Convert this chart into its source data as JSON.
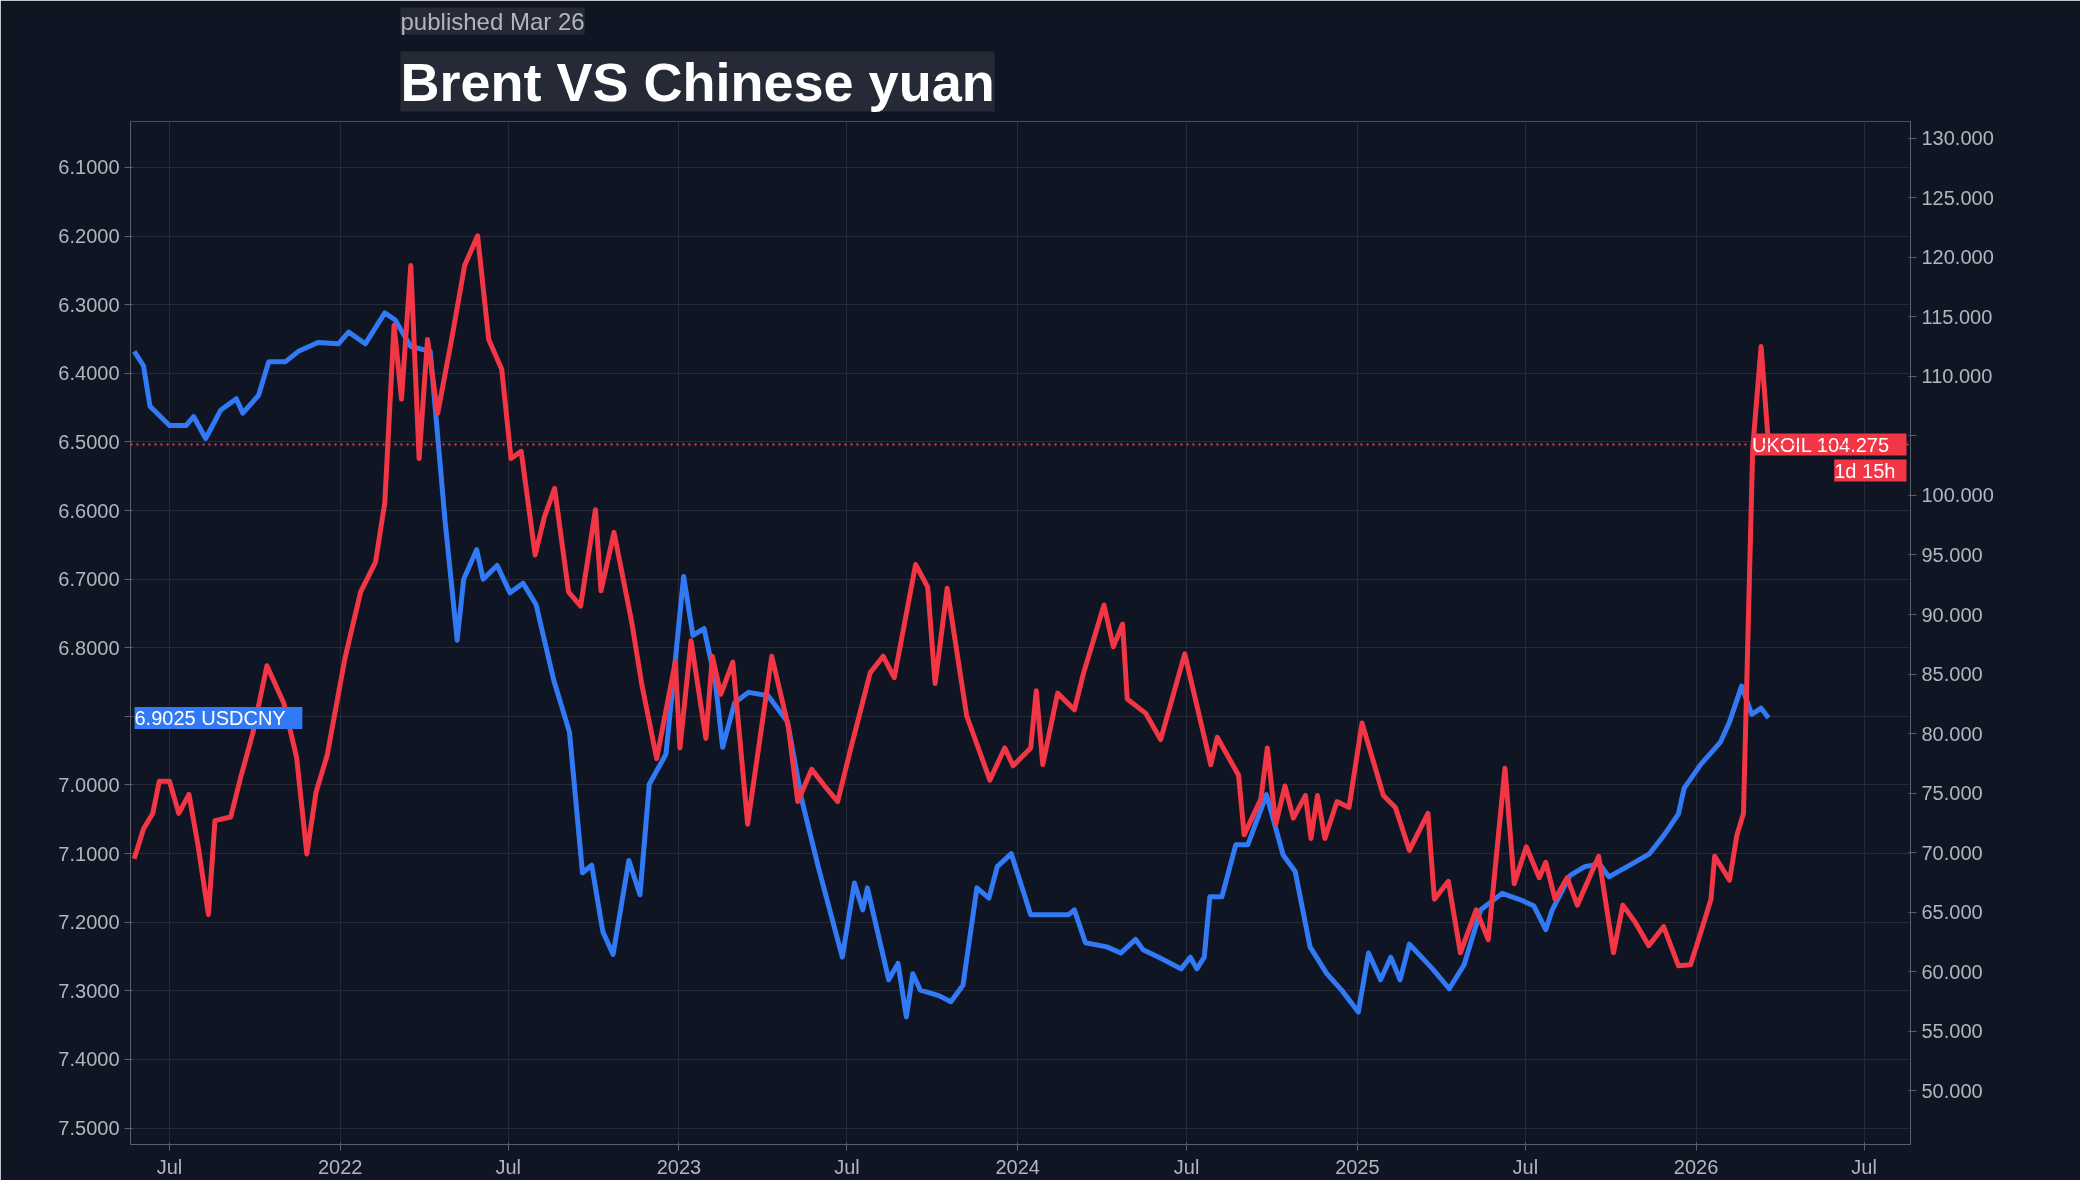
{
  "chart_data": {
    "type": "line",
    "title": "Brent VS Chinese yuan",
    "subtitle": "published Mar 26",
    "xlim": [
      "2021-05-20",
      "2026-08-20"
    ],
    "xticks": [
      {
        "value": "2021-07-01",
        "label": "Jul"
      },
      {
        "value": "2022-01-01",
        "label": "2022"
      },
      {
        "value": "2022-07-01",
        "label": "Jul"
      },
      {
        "value": "2023-01-01",
        "label": "2023"
      },
      {
        "value": "2023-07-01",
        "label": "Jul"
      },
      {
        "value": "2024-01-01",
        "label": "2024"
      },
      {
        "value": "2024-07-01",
        "label": "Jul"
      },
      {
        "value": "2025-01-01",
        "label": "2025"
      },
      {
        "value": "2025-07-01",
        "label": "Jul"
      },
      {
        "value": "2026-01-01",
        "label": "2026"
      },
      {
        "value": "2026-07-01",
        "label": "Jul"
      }
    ],
    "ylim": [
      7.524,
      6.033
    ],
    "yticks": [
      {
        "value": 6.1,
        "label": "6.1000"
      },
      {
        "value": 6.2,
        "label": "6.2000"
      },
      {
        "value": 6.3,
        "label": "6.3000"
      },
      {
        "value": 6.4,
        "label": "6.4000"
      },
      {
        "value": 6.5,
        "label": "6.5000"
      },
      {
        "value": 6.6,
        "label": "6.6000"
      },
      {
        "value": 6.7,
        "label": "6.7000"
      },
      {
        "value": 6.8,
        "label": "6.8000"
      },
      {
        "value": 6.9,
        "label": null
      },
      {
        "value": 7.0,
        "label": "7.0000"
      },
      {
        "value": 7.1,
        "label": "7.1000"
      },
      {
        "value": 7.2,
        "label": "7.2000"
      },
      {
        "value": 7.3,
        "label": "7.3000"
      },
      {
        "value": 7.4,
        "label": "7.4000"
      },
      {
        "value": 7.5,
        "label": "7.5000"
      }
    ],
    "y2lim": [
      45.5,
      131.4
    ],
    "y2ticks": [
      {
        "value": 50,
        "label": "50.000"
      },
      {
        "value": 55,
        "label": "55.000"
      },
      {
        "value": 60,
        "label": "60.000"
      },
      {
        "value": 65,
        "label": "65.000"
      },
      {
        "value": 70,
        "label": "70.000"
      },
      {
        "value": 75,
        "label": "75.000"
      },
      {
        "value": 80,
        "label": "80.000"
      },
      {
        "value": 85,
        "label": "85.000"
      },
      {
        "value": 90,
        "label": "90.000"
      },
      {
        "value": 95,
        "label": "95.000"
      },
      {
        "value": 100,
        "label": "100.000"
      },
      {
        "value": 105,
        "label": null
      },
      {
        "value": 110,
        "label": "110.000"
      },
      {
        "value": 115,
        "label": "115.000"
      },
      {
        "value": 120,
        "label": "120.000"
      },
      {
        "value": 125,
        "label": "125.000"
      },
      {
        "value": 130,
        "label": "130.000"
      }
    ],
    "grid": true,
    "marker": "none",
    "line_style": "solid",
    "ref_lines": [
      {
        "axis": "y2",
        "value": 104.275,
        "color": "#f23645",
        "line_style": "dotted"
      }
    ],
    "annotations": [
      "1d 15h"
    ],
    "series": [
      {
        "name": "USDCNY",
        "color": "#3179f5",
        "x": [
          "2021-05-24",
          "2021-06-03",
          "2021-06-10",
          "2021-07-01",
          "2021-07-19",
          "2021-07-27",
          "2021-08-09",
          "2021-08-25",
          "2021-09-11",
          "2021-09-18",
          "2021-10-05",
          "2021-10-16",
          "2021-11-03",
          "2021-11-17",
          "2021-12-08",
          "2021-12-30",
          "2022-01-10",
          "2022-01-28",
          "2022-02-18",
          "2022-03-01",
          "2022-03-18",
          "2022-04-08",
          "2022-04-15",
          "2022-04-24",
          "2022-05-07",
          "2022-05-14",
          "2022-05-28",
          "2022-06-04",
          "2022-06-19",
          "2022-07-03",
          "2022-07-17",
          "2022-07-31",
          "2022-08-19",
          "2022-09-05",
          "2022-09-19",
          "2022-09-29",
          "2022-10-11",
          "2022-10-22",
          "2022-11-08",
          "2022-11-20",
          "2022-11-30",
          "2022-12-18",
          "2023-01-06",
          "2023-01-16",
          "2023-01-28",
          "2023-02-09",
          "2023-02-17",
          "2023-03-02",
          "2023-03-17",
          "2023-04-07",
          "2023-04-28",
          "2023-05-13",
          "2023-05-31",
          "2023-06-26",
          "2023-07-09",
          "2023-07-18",
          "2023-07-23",
          "2023-08-15",
          "2023-08-25",
          "2023-09-03",
          "2023-09-10",
          "2023-09-18",
          "2023-10-08",
          "2023-10-21",
          "2023-11-03",
          "2023-11-18",
          "2023-12-01",
          "2023-12-10",
          "2023-12-25",
          "2024-01-15",
          "2024-01-31",
          "2024-02-25",
          "2024-03-02",
          "2024-03-14",
          "2024-04-06",
          "2024-04-21",
          "2024-05-07",
          "2024-05-15",
          "2024-06-01",
          "2024-06-25",
          "2024-07-05",
          "2024-07-12",
          "2024-07-20",
          "2024-07-26",
          "2024-08-08",
          "2024-08-23",
          "2024-09-05",
          "2024-09-25",
          "2024-10-13",
          "2024-10-26",
          "2024-11-11",
          "2024-11-29",
          "2024-12-15",
          "2025-01-02",
          "2025-01-13",
          "2025-01-26",
          "2025-02-06",
          "2025-02-16",
          "2025-02-26",
          "2025-03-23",
          "2025-04-10",
          "2025-04-26",
          "2025-05-14",
          "2025-06-06",
          "2025-06-25",
          "2025-07-10",
          "2025-07-23",
          "2025-07-30",
          "2025-08-18",
          "2025-09-03",
          "2025-09-19",
          "2025-09-29",
          "2025-10-24",
          "2025-11-12",
          "2025-11-28",
          "2025-12-13",
          "2025-12-19",
          "2026-01-06",
          "2026-01-27",
          "2026-02-06",
          "2026-02-19",
          "2026-03-02",
          "2026-03-12",
          "2026-03-20"
        ],
        "values": [
          6.368,
          6.389,
          6.448,
          6.476,
          6.476,
          6.463,
          6.495,
          6.454,
          6.437,
          6.458,
          6.432,
          6.383,
          6.383,
          6.368,
          6.355,
          6.357,
          6.34,
          6.357,
          6.312,
          6.322,
          6.361,
          6.368,
          6.476,
          6.616,
          6.789,
          6.7,
          6.657,
          6.7,
          6.68,
          6.72,
          6.706,
          6.737,
          6.847,
          6.923,
          7.128,
          7.117,
          7.214,
          7.247,
          7.11,
          7.16,
          6.999,
          6.955,
          6.696,
          6.782,
          6.772,
          6.847,
          6.945,
          6.88,
          6.865,
          6.87,
          6.908,
          7.02,
          7.119,
          7.251,
          7.143,
          7.182,
          7.15,
          7.284,
          7.26,
          7.338,
          7.275,
          7.299,
          7.307,
          7.316,
          7.292,
          7.15,
          7.165,
          7.119,
          7.1,
          7.189,
          7.189,
          7.189,
          7.182,
          7.23,
          7.236,
          7.245,
          7.225,
          7.24,
          7.251,
          7.268,
          7.251,
          7.268,
          7.251,
          7.163,
          7.163,
          7.087,
          7.087,
          7.014,
          7.102,
          7.126,
          7.236,
          7.275,
          7.299,
          7.331,
          7.245,
          7.284,
          7.251,
          7.284,
          7.232,
          7.268,
          7.297,
          7.262,
          7.182,
          7.158,
          7.167,
          7.176,
          7.211,
          7.182,
          7.132,
          7.119,
          7.115,
          7.134,
          7.115,
          7.1,
          7.072,
          7.042,
          7.005,
          6.97,
          6.938,
          6.908,
          6.856,
          6.897,
          6.888,
          6.9025
        ],
        "value_labels": [
          null,
          null,
          null,
          null,
          null,
          null,
          null,
          null,
          null,
          null,
          null,
          null,
          null,
          null,
          null,
          null,
          null,
          null,
          null,
          null,
          null,
          null,
          null,
          null,
          null,
          null,
          null,
          null,
          null,
          null,
          null,
          null,
          null,
          null,
          null,
          null,
          null,
          null,
          null,
          null,
          null,
          null,
          null,
          null,
          null,
          null,
          null,
          null,
          null,
          null,
          null,
          null,
          null,
          null,
          null,
          null,
          null,
          null,
          null,
          null,
          null,
          null,
          null,
          null,
          null,
          null,
          null,
          null,
          null,
          null,
          null,
          null,
          null,
          null,
          null,
          null,
          null,
          null,
          null,
          null,
          null,
          null,
          null,
          null,
          null,
          null,
          null,
          null,
          null,
          null,
          null,
          null,
          null,
          null,
          null,
          null,
          null,
          null,
          null,
          null,
          null,
          null,
          null,
          null,
          null,
          null,
          null,
          null,
          null,
          null,
          null,
          null,
          null,
          null,
          null,
          null,
          null,
          null,
          null,
          null,
          null,
          null,
          null,
          "6.9025"
        ]
      },
      {
        "name": "UKOIL",
        "color": "#f23645",
        "axis": "y2",
        "x": [
          "2021-05-24",
          "2021-06-03",
          "2021-06-13",
          "2021-06-20",
          "2021-07-01",
          "2021-07-11",
          "2021-07-22",
          "2021-08-01",
          "2021-08-12",
          "2021-08-19",
          "2021-09-05",
          "2021-09-16",
          "2021-09-29",
          "2021-10-14",
          "2021-11-01",
          "2021-11-15",
          "2021-11-26",
          "2021-12-06",
          "2021-12-18",
          "2022-01-06",
          "2022-01-23",
          "2022-02-08",
          "2022-02-18",
          "2022-02-28",
          "2022-03-08",
          "2022-03-18",
          "2022-03-27",
          "2022-04-05",
          "2022-04-16",
          "2022-05-01",
          "2022-05-15",
          "2022-05-29",
          "2022-06-10",
          "2022-06-24",
          "2022-07-04",
          "2022-07-15",
          "2022-07-30",
          "2022-08-09",
          "2022-08-20",
          "2022-09-04",
          "2022-09-17",
          "2022-10-03",
          "2022-10-09",
          "2022-10-23",
          "2022-11-11",
          "2022-11-22",
          "2022-12-08",
          "2022-12-28",
          "2023-01-02",
          "2023-01-14",
          "2023-01-30",
          "2023-02-06",
          "2023-02-15",
          "2023-02-28",
          "2023-03-16",
          "2023-04-11",
          "2023-04-29",
          "2023-05-09",
          "2023-05-24",
          "2023-06-08",
          "2023-06-21",
          "2023-07-04",
          "2023-07-26",
          "2023-08-09",
          "2023-08-21",
          "2023-09-13",
          "2023-09-26",
          "2023-10-04",
          "2023-10-17",
          "2023-11-07",
          "2023-12-02",
          "2023-12-18",
          "2023-12-27",
          "2024-01-15",
          "2024-01-21",
          "2024-01-28",
          "2024-02-13",
          "2024-03-02",
          "2024-03-12",
          "2024-04-03",
          "2024-04-13",
          "2024-04-23",
          "2024-04-28",
          "2024-05-18",
          "2024-06-03",
          "2024-06-29",
          "2024-07-27",
          "2024-08-03",
          "2024-08-26",
          "2024-09-01",
          "2024-09-19",
          "2024-09-26",
          "2024-10-05",
          "2024-10-15",
          "2024-10-24",
          "2024-11-06",
          "2024-11-12",
          "2024-11-19",
          "2024-11-27",
          "2024-12-10",
          "2024-12-23",
          "2025-01-06",
          "2025-01-29",
          "2025-02-11",
          "2025-02-26",
          "2025-03-18",
          "2025-03-25",
          "2025-04-09",
          "2025-04-22",
          "2025-05-09",
          "2025-05-22",
          "2025-06-09",
          "2025-06-19",
          "2025-07-02",
          "2025-07-16",
          "2025-07-23",
          "2025-08-02",
          "2025-08-15",
          "2025-08-26",
          "2025-09-18",
          "2025-10-04",
          "2025-10-14",
          "2025-10-27",
          "2025-11-11",
          "2025-11-27",
          "2025-12-13",
          "2025-12-26",
          "2026-01-06",
          "2026-01-17",
          "2026-01-21",
          "2026-02-06",
          "2026-02-14",
          "2026-02-21",
          "2026-03-03",
          "2026-03-12",
          "2026-03-20"
        ],
        "values": [
          69.5,
          72.0,
          73.3,
          76.0,
          76.0,
          73.3,
          74.9,
          70.5,
          64.8,
          72.7,
          73.0,
          76.4,
          80.1,
          85.7,
          82.6,
          78.0,
          69.9,
          75.1,
          78.2,
          86.3,
          91.9,
          94.4,
          99.4,
          114.3,
          108.1,
          119.3,
          103.1,
          113.1,
          106.9,
          113.1,
          119.3,
          121.8,
          113.1,
          110.6,
          103.1,
          103.7,
          95.0,
          98.2,
          100.6,
          91.9,
          90.7,
          98.8,
          92.0,
          96.9,
          89.4,
          84.1,
          77.9,
          86.0,
          78.8,
          87.8,
          79.6,
          86.5,
          83.3,
          86.0,
          72.4,
          86.5,
          80.5,
          74.3,
          77.0,
          75.5,
          74.3,
          78.4,
          85.1,
          86.5,
          84.7,
          94.2,
          92.3,
          84.2,
          92.2,
          81.5,
          76.1,
          78.8,
          77.3,
          78.8,
          83.6,
          77.4,
          83.4,
          82.0,
          85.1,
          90.8,
          87.3,
          89.2,
          82.9,
          81.7,
          79.5,
          86.7,
          77.4,
          79.7,
          76.5,
          71.5,
          74.5,
          78.8,
          72.4,
          75.6,
          72.9,
          74.8,
          71.2,
          74.8,
          71.2,
          74.3,
          73.8,
          80.9,
          74.8,
          73.8,
          70.2,
          73.3,
          66.1,
          67.6,
          61.6,
          65.2,
          62.7,
          77.1,
          67.4,
          70.5,
          67.9,
          69.2,
          66.1,
          67.9,
          65.6,
          69.7,
          61.6,
          65.6,
          64.2,
          62.2,
          63.8,
          60.5,
          60.6,
          63.3,
          66.1,
          69.7,
          67.7,
          71.5,
          73.3,
          104.0,
          112.5,
          104.275
        ],
        "value_labels": [
          null,
          null,
          null,
          null,
          null,
          null,
          null,
          null,
          null,
          null,
          null,
          null,
          null,
          null,
          null,
          null,
          null,
          null,
          null,
          null,
          null,
          null,
          null,
          null,
          null,
          null,
          null,
          null,
          null,
          null,
          null,
          null,
          null,
          null,
          null,
          null,
          null,
          null,
          null,
          null,
          null,
          null,
          null,
          null,
          null,
          null,
          null,
          null,
          null,
          null,
          null,
          null,
          null,
          null,
          null,
          null,
          null,
          null,
          null,
          null,
          null,
          null,
          null,
          null,
          null,
          null,
          null,
          null,
          null,
          null,
          null,
          null,
          null,
          null,
          null,
          null,
          null,
          null,
          null,
          null,
          null,
          null,
          null,
          null,
          null,
          null,
          null,
          null,
          null,
          null,
          null,
          null,
          null,
          null,
          null,
          null,
          null,
          null,
          null,
          null,
          null,
          null,
          null,
          null,
          null,
          null,
          null,
          null,
          null,
          null,
          null,
          null,
          null,
          null,
          null,
          null,
          null,
          null,
          null,
          null,
          null,
          null,
          null,
          null,
          null,
          null,
          null,
          null,
          null,
          null,
          null,
          null,
          null,
          null,
          null,
          "104.275"
        ]
      }
    ]
  }
}
